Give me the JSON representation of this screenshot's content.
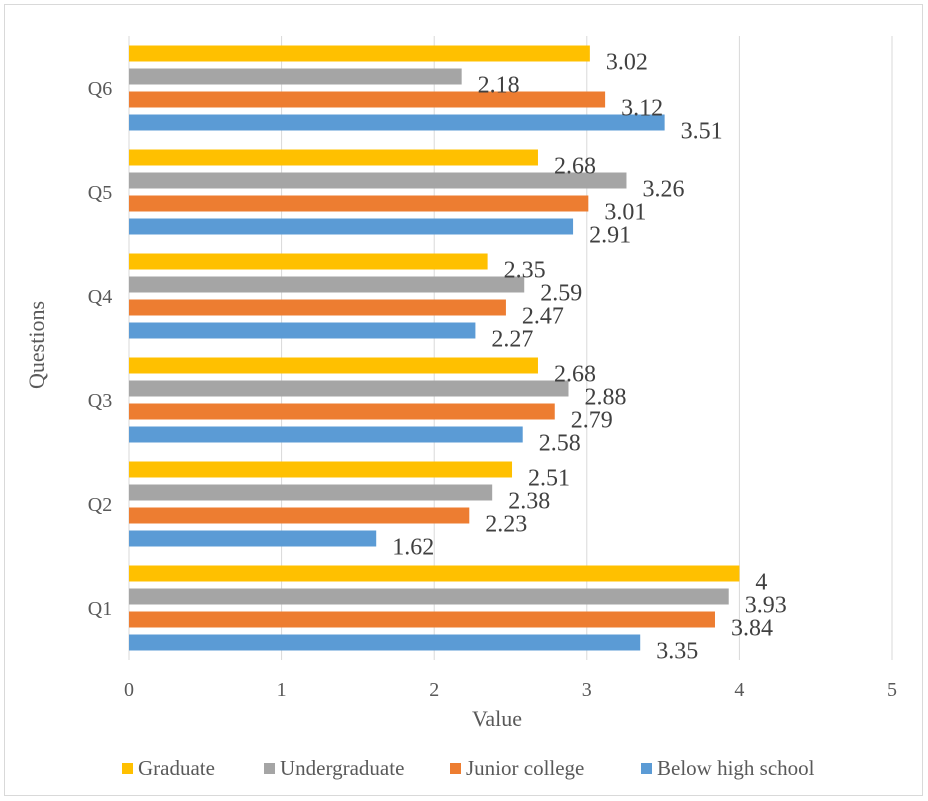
{
  "chart_data": {
    "type": "bar",
    "orientation": "horizontal",
    "categories": [
      "Q1",
      "Q2",
      "Q3",
      "Q4",
      "Q5",
      "Q6"
    ],
    "series": [
      {
        "name": "Below high school",
        "color": "#5B9BD5",
        "values": [
          3.35,
          1.62,
          2.58,
          2.27,
          2.91,
          3.51
        ]
      },
      {
        "name": "Junior college",
        "color": "#ED7D31",
        "values": [
          3.84,
          2.23,
          2.79,
          2.47,
          3.01,
          3.12
        ]
      },
      {
        "name": "Undergraduate",
        "color": "#A5A5A5",
        "values": [
          3.93,
          2.38,
          2.88,
          2.59,
          3.26,
          2.18
        ]
      },
      {
        "name": "Graduate",
        "color": "#FFC000",
        "values": [
          4,
          2.51,
          2.68,
          2.35,
          2.68,
          3.02
        ]
      }
    ],
    "legend_order": [
      "Graduate",
      "Undergraduate",
      "Junior college",
      "Below high school"
    ],
    "xlabel": "Value",
    "ylabel": "Questions",
    "xlim": [
      0,
      5
    ],
    "xticks": [
      "0",
      "1",
      "2",
      "3",
      "4",
      "5"
    ],
    "grid": "vertical",
    "legend_position": "bottom"
  }
}
